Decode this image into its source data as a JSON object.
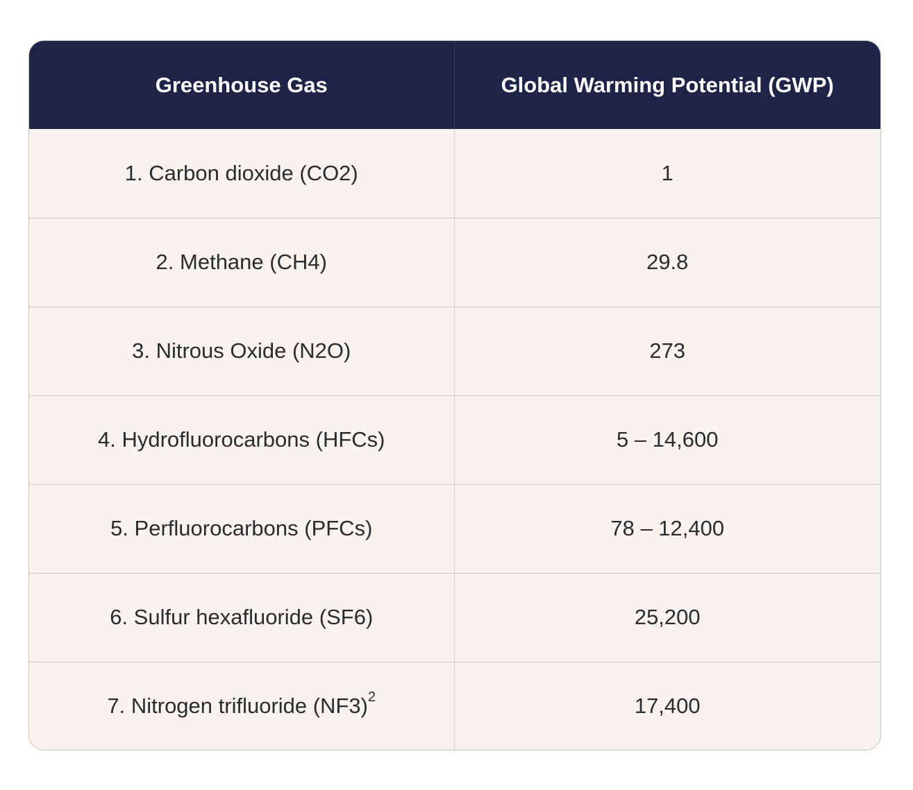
{
  "table": {
    "headers": [
      "Greenhouse Gas",
      "Global Warming Potential (GWP)"
    ],
    "rows": [
      {
        "gas": "1. Carbon dioxide (CO2)",
        "gwp": "1"
      },
      {
        "gas": "2. Methane (CH4)",
        "gwp": "29.8"
      },
      {
        "gas": "3. Nitrous Oxide (N2O)",
        "gwp": "273"
      },
      {
        "gas": "4. Hydrofluorocarbons (HFCs)",
        "gwp": "5 – 14,600"
      },
      {
        "gas": "5. Perfluorocarbons (PFCs)",
        "gwp": "78 – 12,400"
      },
      {
        "gas": "6. Sulfur hexafluoride (SF6)",
        "gwp": "25,200"
      },
      {
        "gas": "7. Nitrogen trifluoride (NF3)",
        "gas_superscript": "2",
        "gwp": "17,400"
      }
    ]
  },
  "colors": {
    "header_background": "#1f2347",
    "header_text": "#ffffff",
    "body_background": "#f6f3f0",
    "body_text": "#2b2b2b",
    "border": "#cfccc8"
  }
}
